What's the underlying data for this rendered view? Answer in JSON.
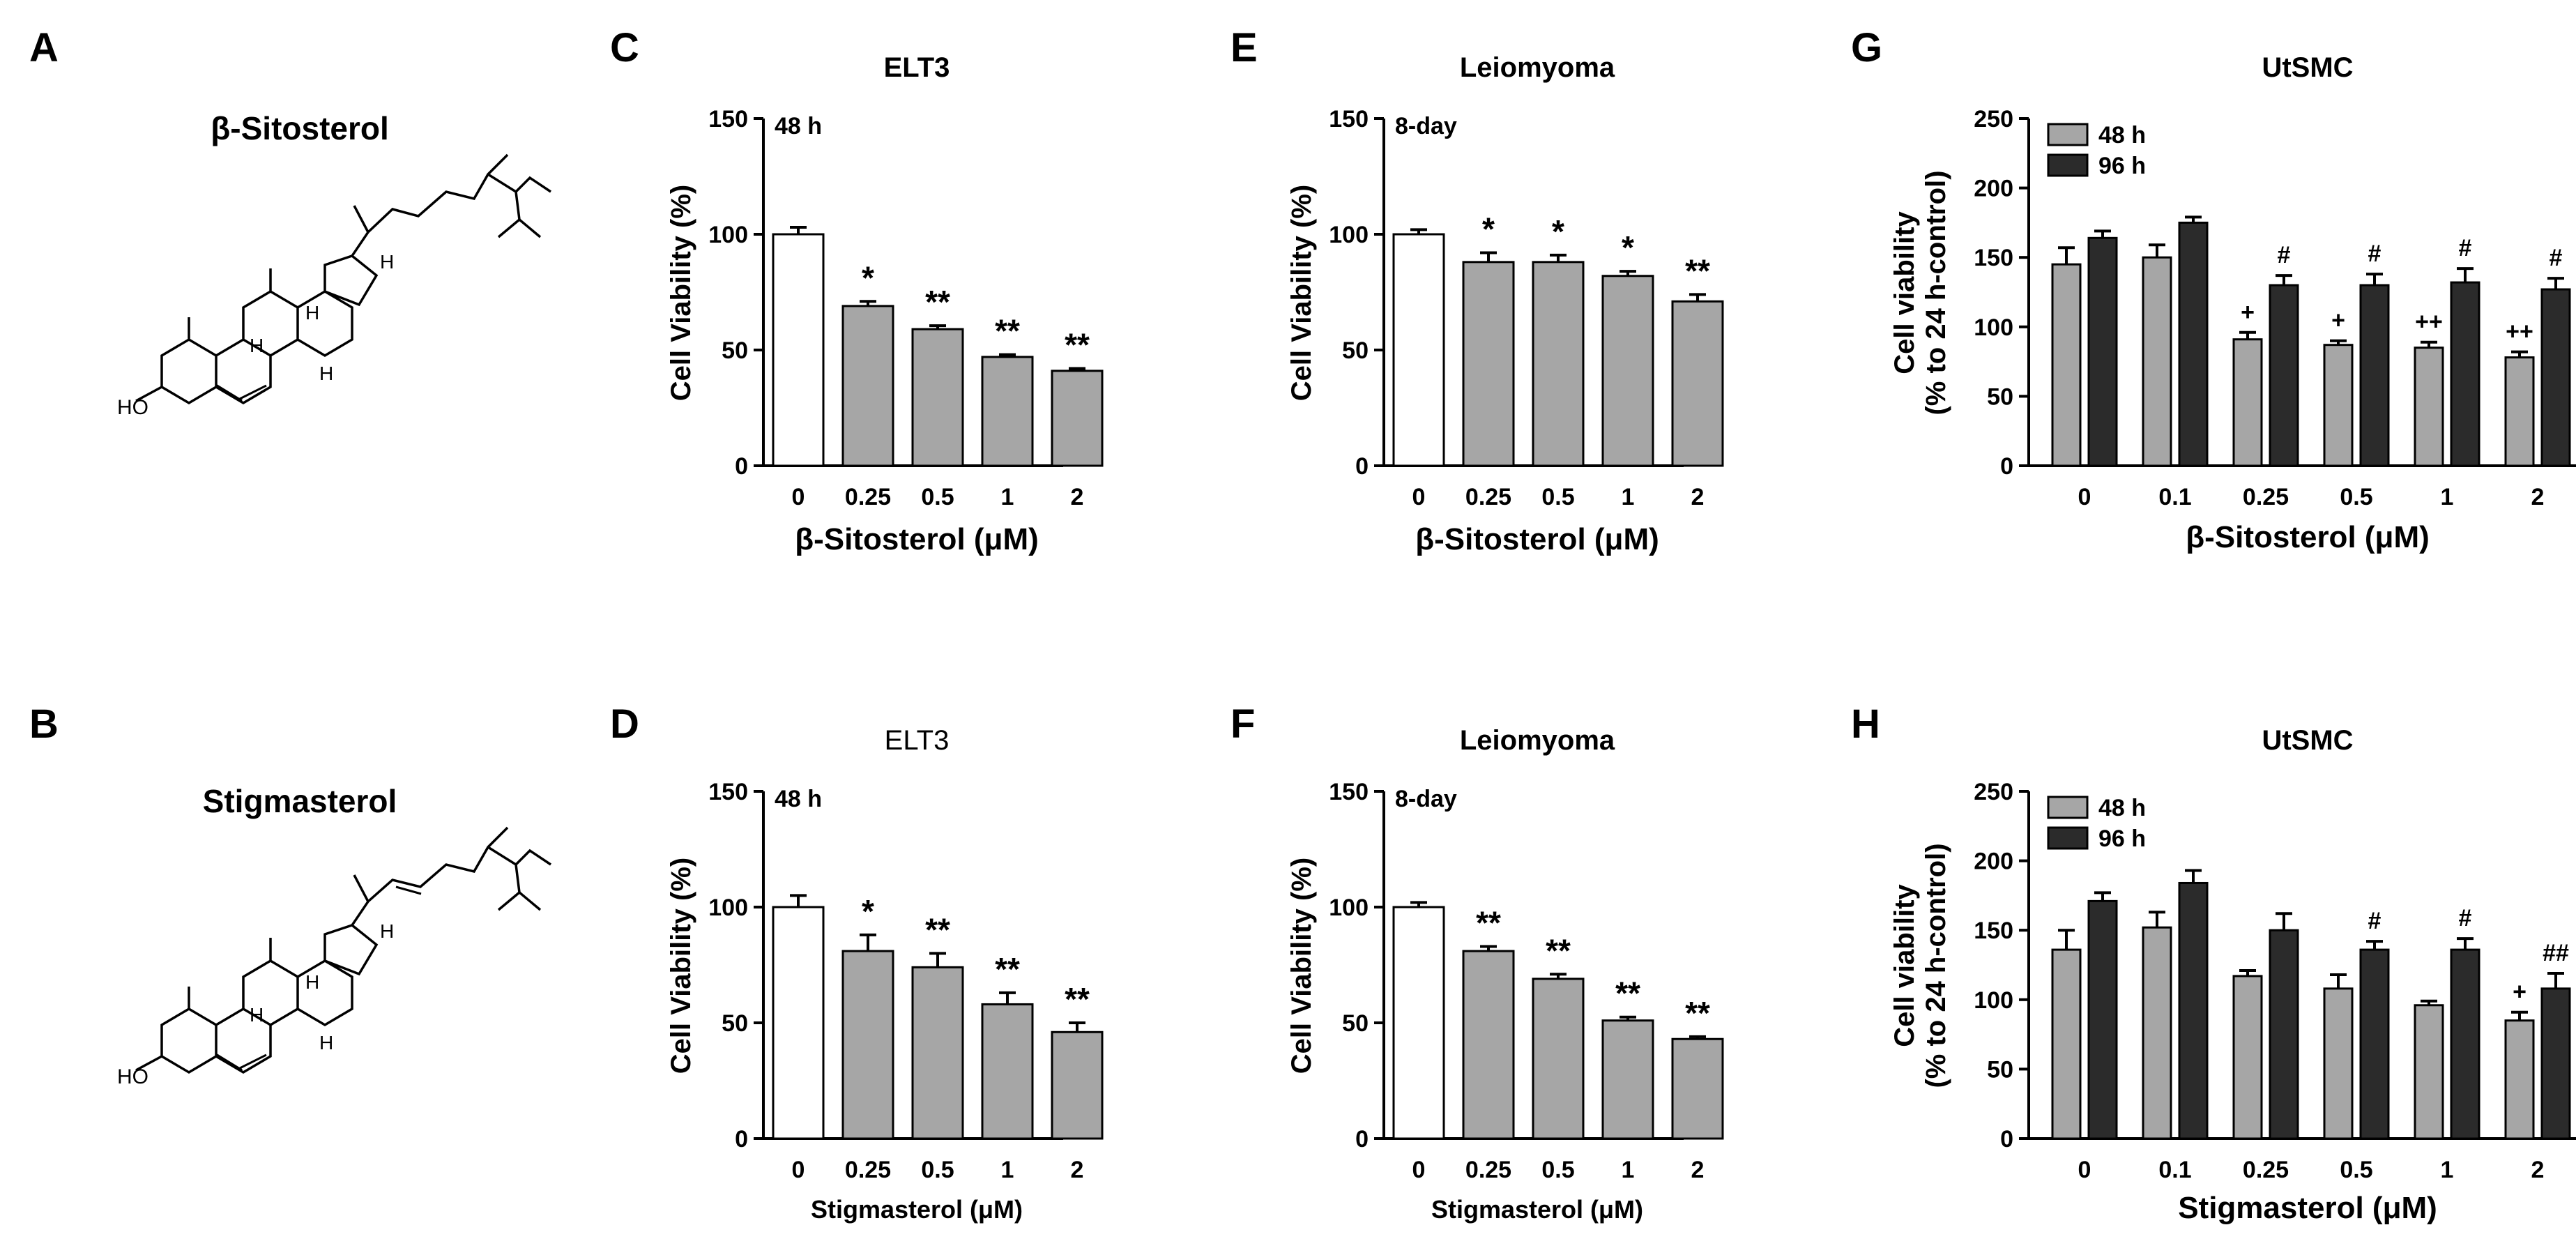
{
  "figure": {
    "panel_letters": [
      "A",
      "B",
      "C",
      "D",
      "E",
      "F",
      "G",
      "H"
    ]
  },
  "structures": [
    {
      "panel": "A",
      "name": "β-Sitosterol",
      "labels": [
        "HO",
        "H",
        "H",
        "H",
        "H"
      ]
    },
    {
      "panel": "B",
      "name": "Stigmasterol",
      "labels": [
        "HO",
        "H",
        "H",
        "H",
        "H"
      ]
    }
  ],
  "chart_data": [
    {
      "panel": "C",
      "type": "bar",
      "title": "ELT3",
      "annotation": "48 h",
      "xlabel": "β-Sitosterol (μM)",
      "ylabel": "Cell Viability (%)",
      "categories": [
        "0",
        "0.25",
        "0.5",
        "1",
        "2"
      ],
      "ylim": [
        0,
        150
      ],
      "yticks": [
        0,
        50,
        100,
        150
      ],
      "series": [
        {
          "name": "viability",
          "values": [
            100,
            69,
            59,
            47,
            41
          ],
          "errors": [
            3,
            2,
            1.5,
            1,
            1
          ]
        }
      ],
      "bar_fill": [
        "#ffffff",
        "#a6a6a6",
        "#a6a6a6",
        "#a6a6a6",
        "#a6a6a6"
      ],
      "sig": [
        [
          "",
          "*",
          "**",
          "**",
          "**"
        ]
      ]
    },
    {
      "panel": "D",
      "type": "bar",
      "title": "ELT3",
      "annotation": "48 h",
      "xlabel": "Stigmasterol (μM)",
      "ylabel": "Cell Viability (%)",
      "categories": [
        "0",
        "0.25",
        "0.5",
        "1",
        "2"
      ],
      "ylim": [
        0,
        150
      ],
      "yticks": [
        0,
        50,
        100,
        150
      ],
      "series": [
        {
          "name": "viability",
          "values": [
            100,
            81,
            74,
            58,
            46
          ],
          "errors": [
            5,
            7,
            6,
            5,
            4
          ]
        }
      ],
      "bar_fill": [
        "#ffffff",
        "#a6a6a6",
        "#a6a6a6",
        "#a6a6a6",
        "#a6a6a6"
      ],
      "sig": [
        [
          "",
          "*",
          "**",
          "**",
          "**"
        ]
      ]
    },
    {
      "panel": "E",
      "type": "bar",
      "title": "Leiomyoma",
      "annotation": "8-day",
      "xlabel": "β-Sitosterol (μM)",
      "ylabel": "Cell Viability (%)",
      "categories": [
        "0",
        "0.25",
        "0.5",
        "1",
        "2"
      ],
      "ylim": [
        0,
        150
      ],
      "yticks": [
        0,
        50,
        100,
        150
      ],
      "series": [
        {
          "name": "viability",
          "values": [
            100,
            88,
            88,
            82,
            71
          ],
          "errors": [
            2,
            4,
            3,
            2,
            3
          ]
        }
      ],
      "bar_fill": [
        "#ffffff",
        "#a6a6a6",
        "#a6a6a6",
        "#a6a6a6",
        "#a6a6a6"
      ],
      "sig": [
        [
          "",
          "*",
          "*",
          "*",
          "**"
        ]
      ]
    },
    {
      "panel": "F",
      "type": "bar",
      "title": "Leiomyoma",
      "annotation": "8-day",
      "xlabel": "Stigmasterol (μM)",
      "ylabel": "Cell Viability (%)",
      "categories": [
        "0",
        "0.25",
        "0.5",
        "1",
        "2"
      ],
      "ylim": [
        0,
        150
      ],
      "yticks": [
        0,
        50,
        100,
        150
      ],
      "series": [
        {
          "name": "viability",
          "values": [
            100,
            81,
            69,
            51,
            43
          ],
          "errors": [
            2,
            2,
            2,
            1.5,
            1
          ]
        }
      ],
      "bar_fill": [
        "#ffffff",
        "#a6a6a6",
        "#a6a6a6",
        "#a6a6a6",
        "#a6a6a6"
      ],
      "sig": [
        [
          "",
          "**",
          "**",
          "**",
          "**"
        ]
      ]
    },
    {
      "panel": "G",
      "type": "bar",
      "title": "UtSMC",
      "xlabel": "β-Sitosterol (μM)",
      "ylabel": "Cell viability",
      "ylabel2": "(% to 24 h-control)",
      "categories": [
        "0",
        "0.1",
        "0.25",
        "0.5",
        "1",
        "2"
      ],
      "ylim": [
        0,
        250
      ],
      "yticks": [
        0,
        50,
        100,
        150,
        200,
        250
      ],
      "legend_position": "top-left",
      "series": [
        {
          "name": "48 h",
          "color": "#a6a6a6",
          "values": [
            145,
            150,
            91,
            87,
            85,
            78
          ],
          "errors": [
            12,
            9,
            5,
            3,
            4,
            4
          ]
        },
        {
          "name": "96 h",
          "color": "#2b2b2b",
          "values": [
            164,
            175,
            130,
            130,
            132,
            127
          ],
          "errors": [
            5,
            4,
            7,
            8,
            10,
            8
          ]
        }
      ],
      "sig": [
        [
          "",
          "",
          "+",
          "+",
          "++",
          "++"
        ],
        [
          "",
          "",
          "#",
          "#",
          "#",
          "#"
        ]
      ]
    },
    {
      "panel": "H",
      "type": "bar",
      "title": "UtSMC",
      "xlabel": "Stigmasterol (μM)",
      "ylabel": "Cell viability",
      "ylabel2": "(% to 24 h-control)",
      "categories": [
        "0",
        "0.1",
        "0.25",
        "0.5",
        "1",
        "2"
      ],
      "ylim": [
        0,
        250
      ],
      "yticks": [
        0,
        50,
        100,
        150,
        200,
        250
      ],
      "legend_position": "top-left",
      "series": [
        {
          "name": "48 h",
          "color": "#a6a6a6",
          "values": [
            136,
            152,
            117,
            108,
            96,
            85
          ],
          "errors": [
            14,
            11,
            4,
            10,
            3,
            6
          ]
        },
        {
          "name": "96 h",
          "color": "#2b2b2b",
          "values": [
            171,
            184,
            150,
            136,
            136,
            108
          ],
          "errors": [
            6,
            9,
            12,
            6,
            8,
            11
          ]
        }
      ],
      "sig": [
        [
          "",
          "",
          "",
          "",
          "",
          "+"
        ],
        [
          "",
          "",
          "",
          "#",
          "#",
          "##"
        ]
      ]
    }
  ]
}
